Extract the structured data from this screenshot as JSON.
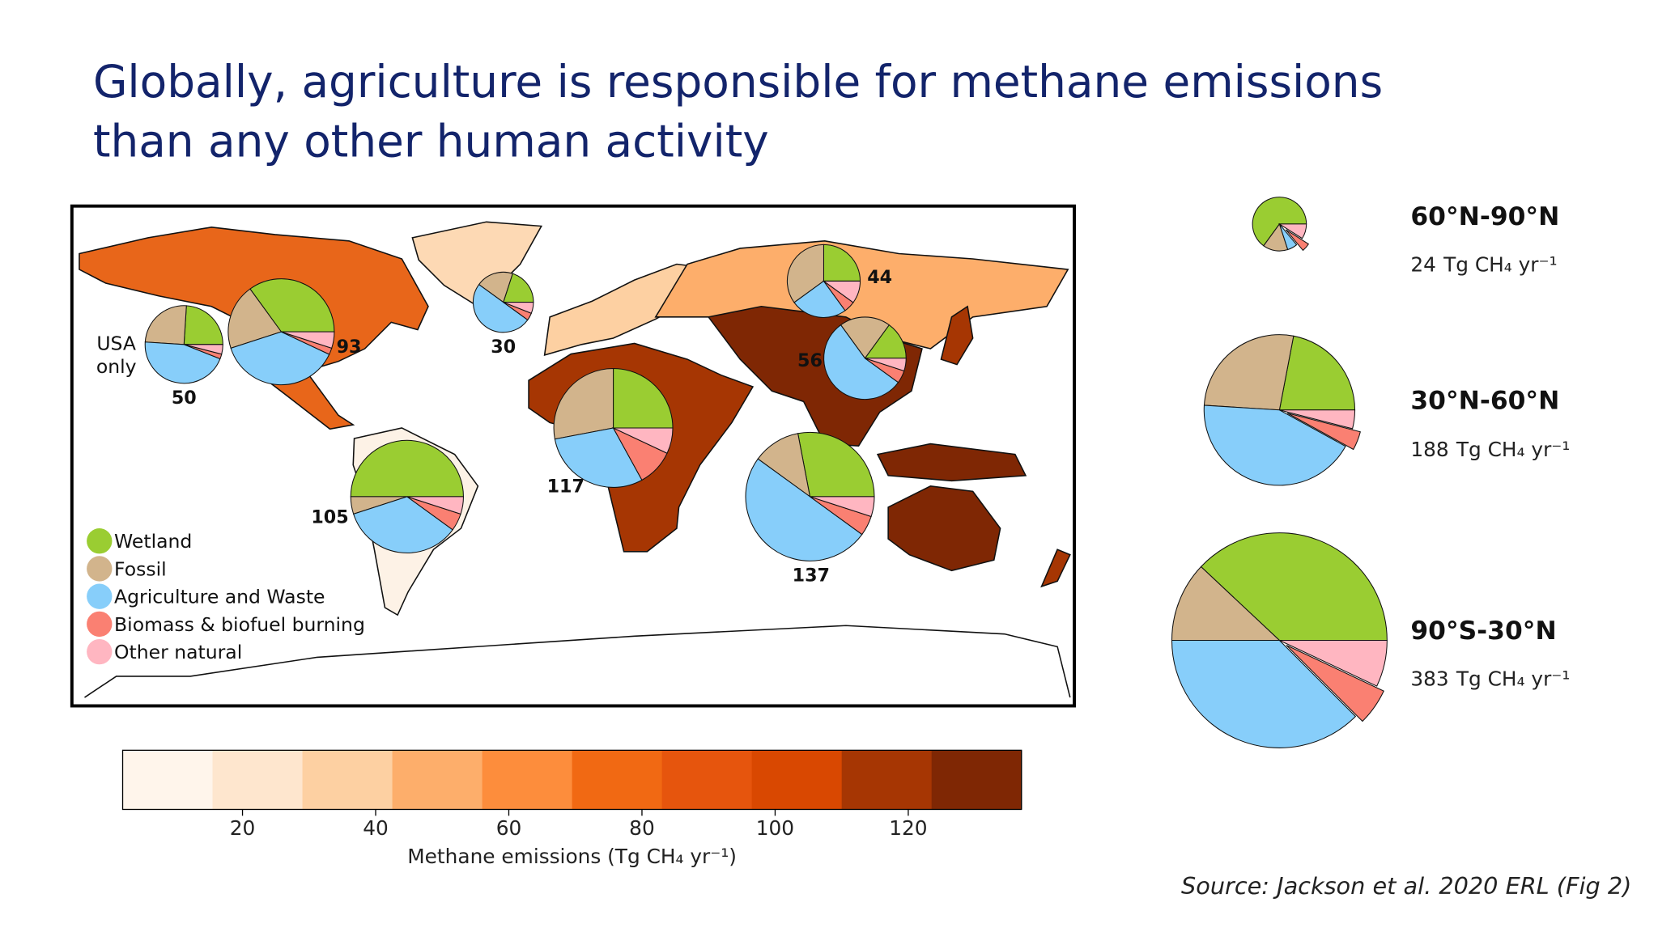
{
  "title_lines": [
    "Globally, agriculture is responsible for methane emissions",
    "than any other human activity"
  ],
  "legend": {
    "names": [
      "Wetland",
      "Fossil",
      "Agriculture and Waste",
      "Biomass & biofuel burning",
      "Other natural"
    ],
    "colors": [
      "#9acd32",
      "#d2b48c",
      "#87cefa",
      "#fa8072",
      "#ffb6c1"
    ]
  },
  "unit": "Tg CH₄ yr⁻¹",
  "regions": [
    {
      "total": 50,
      "note": [
        "USA",
        "only"
      ],
      "shares": [
        24,
        25,
        45,
        2,
        4
      ]
    },
    {
      "total": 93,
      "shares": [
        35,
        20,
        38,
        2,
        5
      ]
    },
    {
      "total": 30,
      "shares": [
        20,
        20,
        50,
        4,
        6
      ]
    },
    {
      "total": 44,
      "shares": [
        25,
        35,
        25,
        5,
        10
      ]
    },
    {
      "total": 56,
      "shares": [
        15,
        20,
        55,
        5,
        5
      ]
    },
    {
      "total": 117,
      "shares": [
        25,
        28,
        30,
        10,
        7
      ]
    },
    {
      "total": 105,
      "shares": [
        50,
        5,
        35,
        5,
        5
      ]
    },
    {
      "total": 137,
      "shares": [
        28,
        12,
        50,
        5,
        5
      ]
    }
  ],
  "lat_pies": [
    {
      "band": "60°N-90°N",
      "total": 24,
      "shares": [
        65,
        15,
        6,
        5,
        9
      ]
    },
    {
      "band": "30°N-60°N",
      "total": 188,
      "shares": [
        22,
        27,
        43,
        4,
        4
      ]
    },
    {
      "band": "90°S-30°N",
      "total": 383,
      "shares": [
        38,
        12,
        37.5,
        5.5,
        7
      ]
    }
  ],
  "colorbar": {
    "label": "Methane emissions (Tg CH₄ yr⁻¹)",
    "lim": [
      2,
      137
    ],
    "ticks": [
      20,
      40,
      60,
      80,
      100,
      120
    ],
    "colors": [
      "#fff5eb",
      "#fee6ce",
      "#fdd0a2",
      "#fdae6b",
      "#fd8d3c",
      "#f16913",
      "#e6550d",
      "#d94801",
      "#a63603",
      "#7f2704"
    ]
  },
  "source": "Source: Jackson et al. 2020 ERL  (Fig 2)"
}
